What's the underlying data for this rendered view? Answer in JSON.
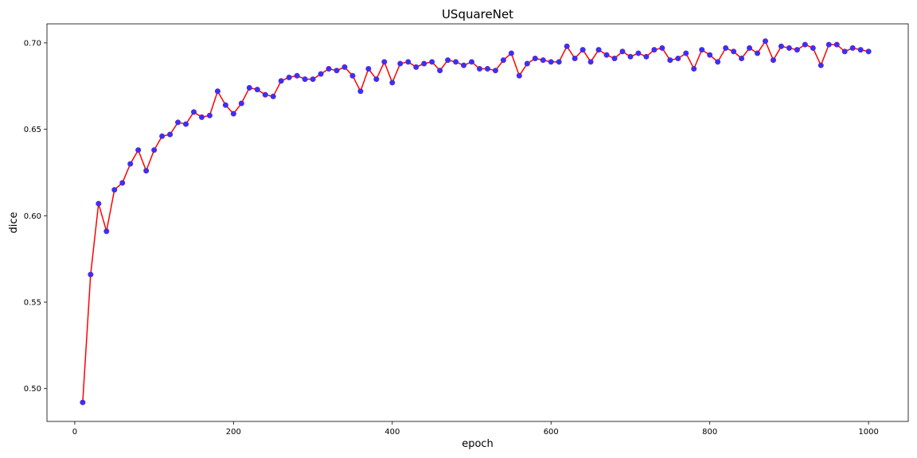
{
  "chart_data": {
    "type": "line",
    "title": "USquareNet",
    "xlabel": "epoch",
    "ylabel": "dice",
    "xlim": [
      -35,
      1050
    ],
    "ylim": [
      0.481,
      0.711
    ],
    "x_ticks": [
      0,
      200,
      400,
      600,
      800,
      1000
    ],
    "x_tick_labels": [
      "0",
      "200",
      "400",
      "600",
      "800",
      "1000"
    ],
    "y_ticks": [
      0.5,
      0.55,
      0.6,
      0.65,
      0.7
    ],
    "y_tick_labels": [
      "0.50",
      "0.55",
      "0.60",
      "0.65",
      "0.70"
    ],
    "grid": false,
    "line_color": "#ff0000",
    "marker_color": "#3333ff",
    "series": [
      {
        "x": [
          10,
          20,
          30,
          40,
          50,
          60,
          70,
          80,
          90,
          100,
          110,
          120,
          130,
          140,
          150,
          160,
          170,
          180,
          190,
          200,
          210,
          220,
          230,
          240,
          250,
          260,
          270,
          280,
          290,
          300,
          310,
          320,
          330,
          340,
          350,
          360,
          370,
          380,
          390,
          400,
          410,
          420,
          430,
          440,
          450,
          460,
          470,
          480,
          490,
          500,
          510,
          520,
          530,
          540,
          550,
          560,
          570,
          580,
          590,
          600,
          610,
          620,
          630,
          640,
          650,
          660,
          670,
          680,
          690,
          700,
          710,
          720,
          730,
          740,
          750,
          760,
          770,
          780,
          790,
          800,
          810,
          820,
          830,
          840,
          850,
          860,
          870,
          880,
          890,
          900,
          910,
          920,
          930,
          940,
          950,
          960,
          970,
          980,
          990,
          1000
        ],
        "values": [
          0.492,
          0.566,
          0.607,
          0.591,
          0.615,
          0.619,
          0.63,
          0.638,
          0.626,
          0.638,
          0.646,
          0.647,
          0.654,
          0.653,
          0.66,
          0.657,
          0.658,
          0.672,
          0.664,
          0.659,
          0.665,
          0.674,
          0.673,
          0.67,
          0.669,
          0.678,
          0.68,
          0.681,
          0.679,
          0.679,
          0.682,
          0.685,
          0.684,
          0.686,
          0.681,
          0.672,
          0.685,
          0.679,
          0.689,
          0.677,
          0.688,
          0.689,
          0.686,
          0.688,
          0.689,
          0.684,
          0.69,
          0.689,
          0.687,
          0.689,
          0.685,
          0.685,
          0.684,
          0.69,
          0.694,
          0.681,
          0.688,
          0.691,
          0.69,
          0.689,
          0.689,
          0.698,
          0.691,
          0.696,
          0.689,
          0.696,
          0.693,
          0.691,
          0.695,
          0.692,
          0.694,
          0.692,
          0.696,
          0.697,
          0.69,
          0.691,
          0.694,
          0.685,
          0.696,
          0.693,
          0.689,
          0.697,
          0.695,
          0.691,
          0.697,
          0.694,
          0.701,
          0.69,
          0.698,
          0.697,
          0.696,
          0.699,
          0.697,
          0.687,
          0.699,
          0.699,
          0.695,
          0.697,
          0.696,
          0.695
        ]
      }
    ]
  }
}
